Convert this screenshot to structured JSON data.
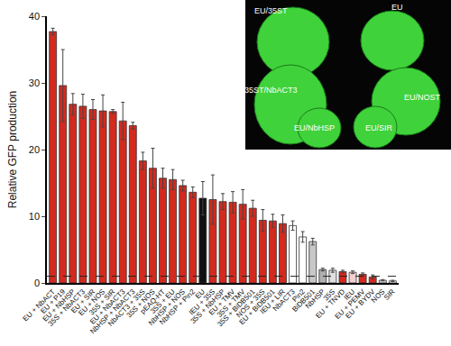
{
  "chart_data": {
    "type": "bar",
    "y_label": "Relative GFP production",
    "categories": [
      "EU + NbACT",
      "EU + P19",
      "EU + NbHSP",
      "35S + NbACT3",
      "EU + SIR",
      "EU + NOS",
      "35S + SIR",
      "EU + NbACT3",
      "NbHSP + NbACT3",
      "NbACT3 + 35S",
      "35S + NOS",
      "pEAQ-HT",
      "35S + EU",
      "NbHSP + NOS",
      "NbHSP + Pin2",
      "EU",
      "IEU + 35S",
      "35S + NbHSP",
      "EU + TMV",
      "35S + TMV",
      "35S + BiDB501",
      "NOS + 35S",
      "EU + BiDB501",
      "IEU + LIR",
      "NbACT3",
      "Pin2",
      "BiDB501",
      "NbHSP",
      "35S",
      "EU + TNVD",
      "IEU",
      "EU + PEMV",
      "EU + BYDV",
      "NOS",
      "SIR"
    ],
    "values": [
      37.7,
      29.6,
      26.8,
      26.5,
      26.0,
      25.8,
      25.7,
      24.3,
      23.6,
      18.3,
      17.2,
      15.7,
      15.5,
      14.6,
      13.6,
      12.7,
      12.5,
      12.2,
      12.1,
      11.8,
      11.2,
      9.4,
      9.3,
      8.9,
      8.6,
      6.9,
      6.2,
      2.0,
      1.9,
      1.7,
      1.6,
      1.3,
      0.9,
      0.4,
      0.3
    ],
    "errors": [
      0.5,
      5.4,
      1.6,
      1.8,
      1.5,
      2.4,
      0.3,
      2.8,
      0.5,
      1.3,
      3.0,
      1.5,
      1.5,
      0.8,
      0.8,
      2.5,
      3.7,
      1.2,
      1.6,
      2.2,
      1.2,
      1.6,
      1.0,
      1.3,
      0.7,
      0.8,
      0.5,
      0.2,
      0.3,
      0.2,
      0.2,
      0.2,
      0.3,
      0.1,
      0.1
    ],
    "colors": [
      "#d42a1e",
      "#d42a1e",
      "#d42a1e",
      "#d42a1e",
      "#d42a1e",
      "#d42a1e",
      "#d42a1e",
      "#d42a1e",
      "#d42a1e",
      "#d42a1e",
      "#d42a1e",
      "#d42a1e",
      "#d42a1e",
      "#d42a1e",
      "#d42a1e",
      "#111111",
      "#d42a1e",
      "#d42a1e",
      "#d42a1e",
      "#d42a1e",
      "#d42a1e",
      "#d42a1e",
      "#d42a1e",
      "#d42a1e",
      "#ffffff",
      "#ffffff",
      "#c8c8c8",
      "#b0b0b0",
      "#e0e0e0",
      "#d42a1e",
      "#f2d0d0",
      "#d42a1e",
      "#d42a1e",
      "#d8d8d8",
      "#ffffff"
    ],
    "ylim": [
      0,
      40
    ],
    "yticks": [
      0,
      10,
      20,
      30,
      40
    ],
    "reference_line": 1,
    "inset_labels": [
      "EU/35ST",
      "EU",
      "35ST/NbACT3",
      "EU/NOST",
      "EU/NbHSP",
      "EU/SIR"
    ],
    "grid": false
  }
}
